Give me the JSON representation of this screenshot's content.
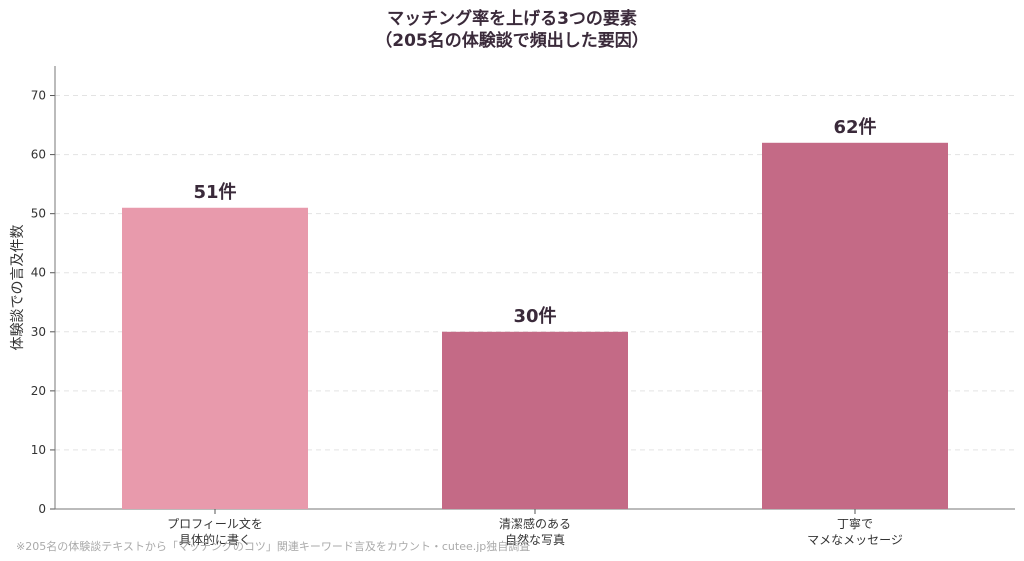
{
  "chart_data": {
    "type": "bar",
    "title_line1": "マッチング率を上げる3つの要素",
    "title_line2": "（205名の体験談で頻出した要因）",
    "ylabel": "体験談での言及件数",
    "xlabel": "",
    "ylim": [
      0,
      75
    ],
    "yticks": [
      "0",
      "10",
      "20",
      "30",
      "40",
      "50",
      "60",
      "70"
    ],
    "grid": true,
    "categories": [
      [
        "プロフィール文を",
        "具体的に書く"
      ],
      [
        "清潔感のある",
        "自然な写真"
      ],
      [
        "丁寧で",
        "マメなメッセージ"
      ]
    ],
    "values": [
      51,
      30,
      62
    ],
    "data_labels": [
      "51件",
      "30件",
      "62件"
    ],
    "colors": [
      "#e89aac",
      "#c46a86",
      "#c46a86"
    ]
  },
  "footnote": "※205名の体験談テキストから「マッチングのコツ」関連キーワード言及をカウント・cutee.jp独自調査"
}
